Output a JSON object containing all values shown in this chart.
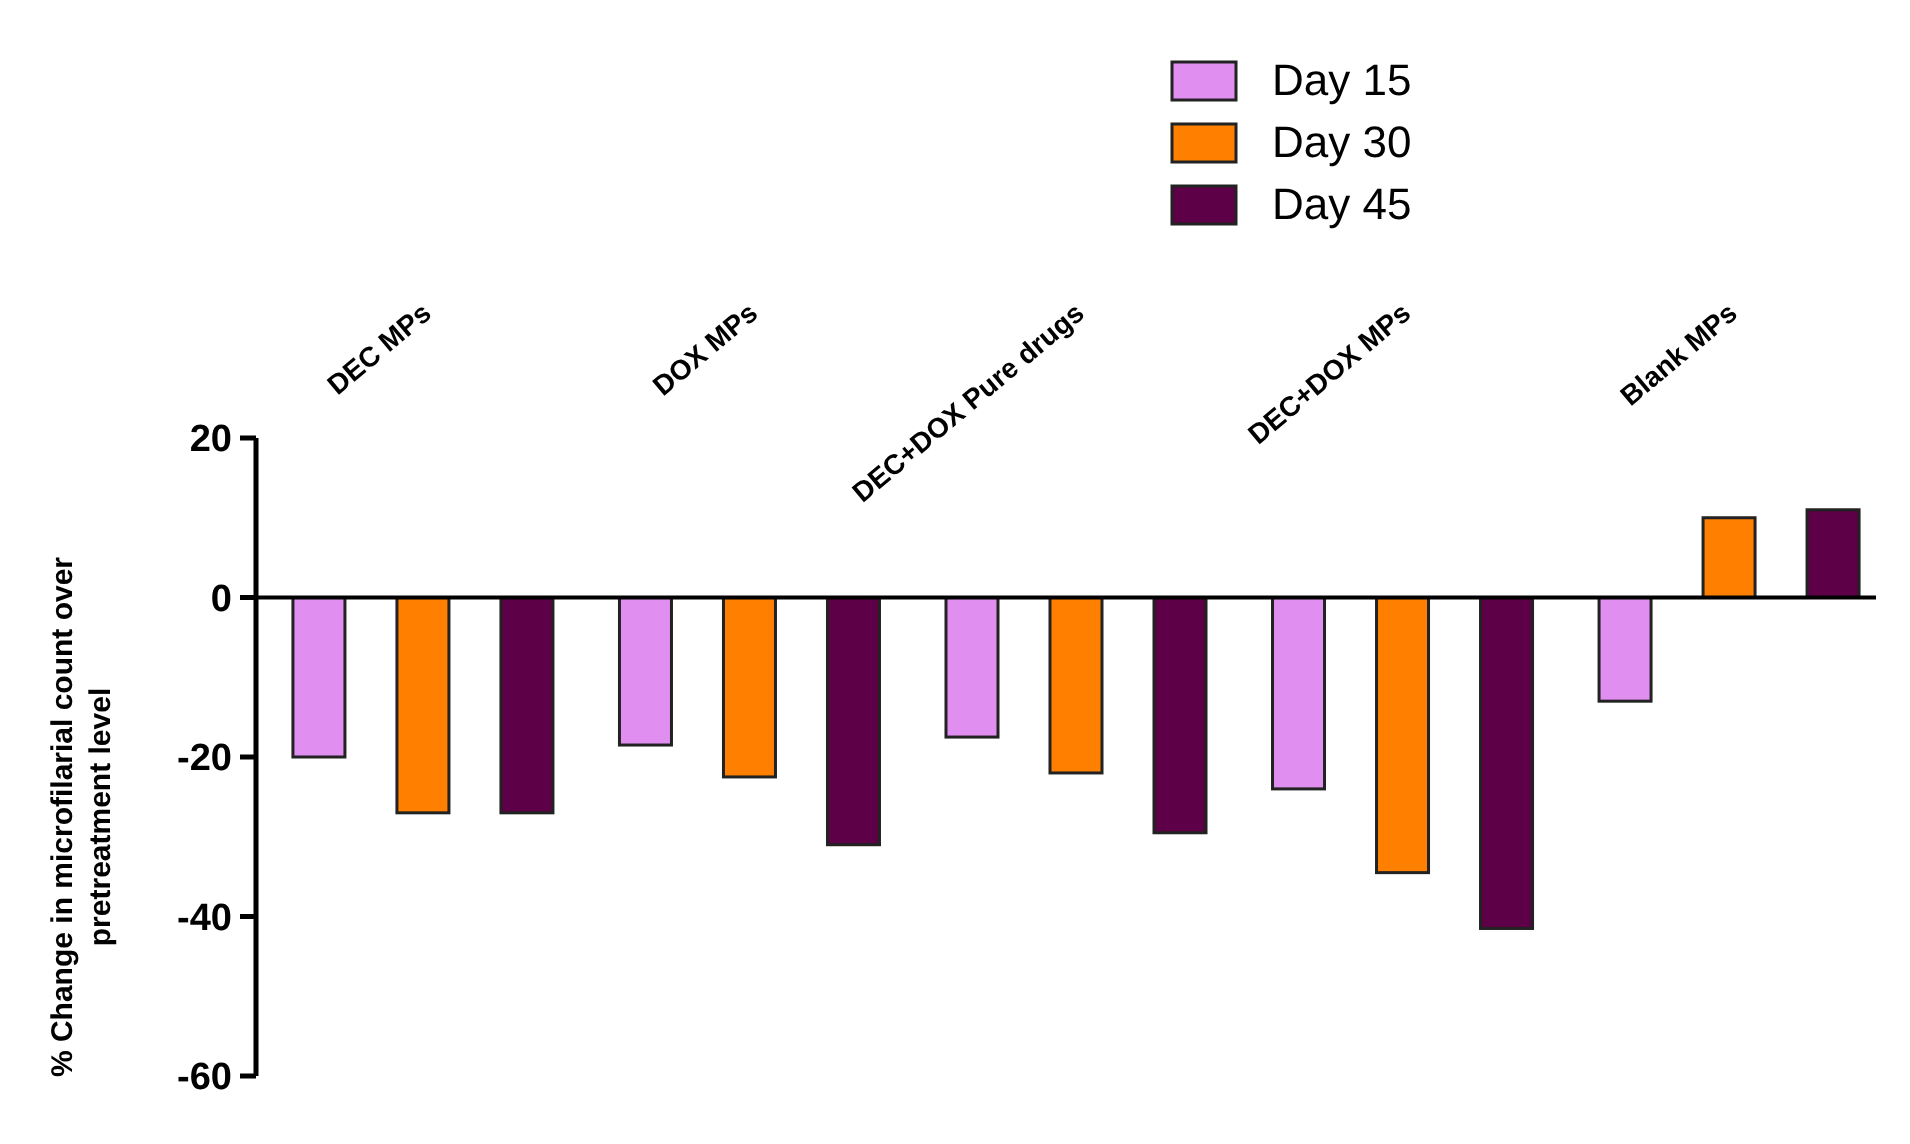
{
  "chart_data": {
    "type": "bar",
    "ylabel": "% Change in microfilarial count over pretreatment level",
    "categories": [
      "DEC MPs",
      "DOX MPs",
      "DEC+DOX Pure drugs",
      "DEC+DOX MPs",
      "Blank MPs"
    ],
    "series": [
      {
        "name": "Day 15",
        "color": "#e08ef0",
        "values": [
          -20,
          -18.5,
          -17.5,
          -24,
          -13
        ]
      },
      {
        "name": "Day 30",
        "color": "#ff8000",
        "values": [
          -27,
          -22.5,
          -22,
          -34.5,
          10
        ]
      },
      {
        "name": "Day 45",
        "color": "#5e0047",
        "values": [
          -27,
          -31,
          -29.5,
          -41.5,
          11
        ]
      }
    ],
    "ylim": [
      -60,
      20
    ],
    "yticks": [
      -60,
      -40,
      -20,
      0,
      20
    ],
    "legend": "top"
  }
}
